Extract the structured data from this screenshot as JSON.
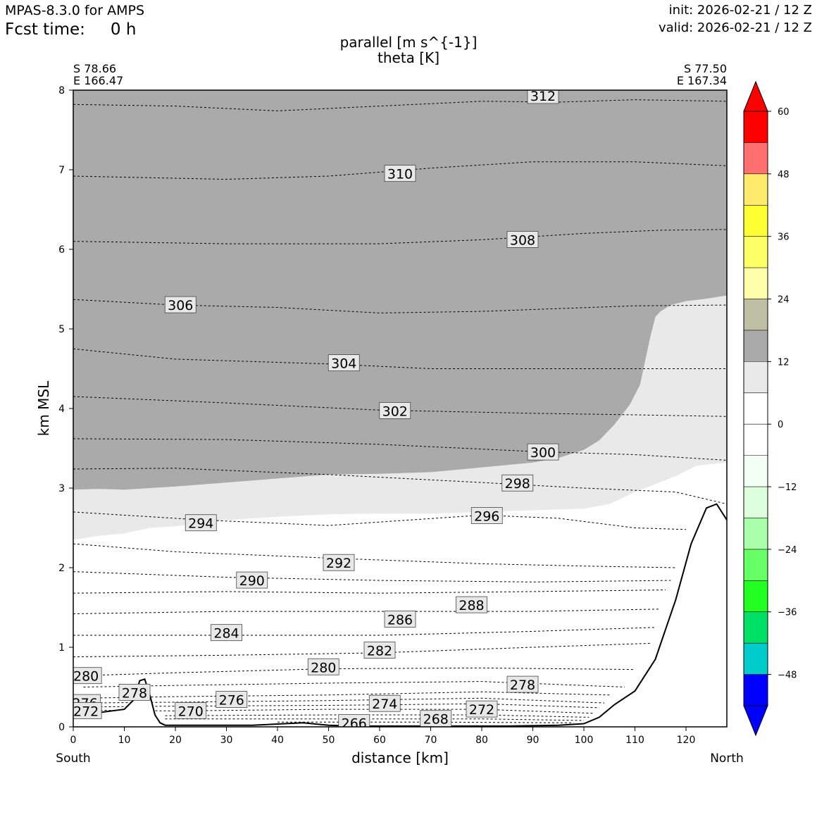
{
  "header": {
    "model": "MPAS-8.3.0 for AMPS",
    "fcst_label": "Fcst time:",
    "fcst_value": "0 h",
    "init": "init: 2026-02-21 / 12 Z",
    "valid": "valid: 2026-02-21 / 12 Z"
  },
  "chart_data": {
    "type": "cross-section",
    "title": "parallel [m s^{-1}]",
    "subtitle": "theta [K]",
    "xlabel": "distance [km]",
    "ylabel": "km MSL",
    "xlim": [
      0,
      128
    ],
    "ylim": [
      0,
      8
    ],
    "xticks": [
      0,
      10,
      20,
      30,
      40,
      50,
      60,
      70,
      80,
      90,
      100,
      110,
      120
    ],
    "yticks": [
      0,
      1,
      2,
      3,
      4,
      5,
      6,
      7,
      8
    ],
    "left_end": {
      "lat": "S 78.66",
      "lon": "E 166.47",
      "direction": "South"
    },
    "right_end": {
      "lat": "S 77.50",
      "lon": "E 167.34",
      "direction": "North"
    },
    "terrain_km": [
      [
        0,
        0.15
      ],
      [
        5,
        0.18
      ],
      [
        10,
        0.22
      ],
      [
        12,
        0.35
      ],
      [
        13,
        0.58
      ],
      [
        14,
        0.6
      ],
      [
        15,
        0.4
      ],
      [
        16,
        0.15
      ],
      [
        17,
        0.05
      ],
      [
        18,
        0.02
      ],
      [
        25,
        0.02
      ],
      [
        35,
        0.02
      ],
      [
        45,
        0.05
      ],
      [
        50,
        0.02
      ],
      [
        55,
        0.01
      ],
      [
        70,
        0.01
      ],
      [
        85,
        0.01
      ],
      [
        95,
        0.02
      ],
      [
        100,
        0.04
      ],
      [
        103,
        0.12
      ],
      [
        106,
        0.28
      ],
      [
        110,
        0.45
      ],
      [
        114,
        0.85
      ],
      [
        118,
        1.6
      ],
      [
        121,
        2.3
      ],
      [
        124,
        2.75
      ],
      [
        126,
        2.8
      ],
      [
        128,
        2.6
      ]
    ],
    "theta_labels": [
      {
        "v": 312,
        "x": 92,
        "z": 7.93
      },
      {
        "v": 310,
        "x": 64,
        "z": 6.95
      },
      {
        "v": 308,
        "x": 88,
        "z": 6.12
      },
      {
        "v": 306,
        "x": 21,
        "z": 5.3
      },
      {
        "v": 304,
        "x": 53,
        "z": 4.57
      },
      {
        "v": 302,
        "x": 63,
        "z": 3.97
      },
      {
        "v": 300,
        "x": 92,
        "z": 3.45
      },
      {
        "v": 298,
        "x": 87,
        "z": 3.06
      },
      {
        "v": 296,
        "x": 81,
        "z": 2.65
      },
      {
        "v": 294,
        "x": 25,
        "z": 2.56
      },
      {
        "v": 292,
        "x": 52,
        "z": 2.06
      },
      {
        "v": 290,
        "x": 35,
        "z": 1.84
      },
      {
        "v": 288,
        "x": 78,
        "z": 1.53
      },
      {
        "v": 286,
        "x": 64,
        "z": 1.35
      },
      {
        "v": 284,
        "x": 30,
        "z": 1.18
      },
      {
        "v": 282,
        "x": 60,
        "z": 0.96
      },
      {
        "v": 280,
        "x": 49,
        "z": 0.75
      },
      {
        "v": 280,
        "x": 2.5,
        "z": 0.64
      },
      {
        "v": 278,
        "x": 88,
        "z": 0.53
      },
      {
        "v": 278,
        "x": 12,
        "z": 0.43
      },
      {
        "v": 276,
        "x": 31,
        "z": 0.34
      },
      {
        "v": 276,
        "x": 2.3,
        "z": 0.3
      },
      {
        "v": 274,
        "x": 61,
        "z": 0.29
      },
      {
        "v": 272,
        "x": 80,
        "z": 0.22
      },
      {
        "v": 272,
        "x": 2.5,
        "z": 0.2
      },
      {
        "v": 270,
        "x": 23,
        "z": 0.2
      },
      {
        "v": 268,
        "x": 71,
        "z": 0.1
      },
      {
        "v": 266,
        "x": 55,
        "z": 0.05
      }
    ],
    "colorbar": {
      "label_ticks": [
        60,
        48,
        36,
        24,
        12,
        0,
        -12,
        -24,
        -36,
        -48
      ],
      "levels": [
        -54,
        -48,
        -42,
        -36,
        -30,
        -24,
        -18,
        -12,
        -6,
        0,
        6,
        12,
        18,
        24,
        30,
        36,
        42,
        48,
        54,
        60
      ],
      "colors": [
        "#0000ff",
        "#00cccc",
        "#00e066",
        "#22ff22",
        "#66ff66",
        "#aaffaa",
        "#ddffdd",
        "#f2fff2",
        "#ffffff",
        "#ffffff",
        "#e9e9e9",
        "#aaaaaa",
        "#bfbfa5",
        "#ffffaa",
        "#ffff66",
        "#ffff33",
        "#ffeb6b",
        "#ff6f6f",
        "#ff0000"
      ],
      "under_color": "#0000ff",
      "over_color": "#ff0000"
    },
    "shading_colors": {
      "band_6_12": "#e9e9e9",
      "band_12_18": "#aaaaaa"
    }
  }
}
